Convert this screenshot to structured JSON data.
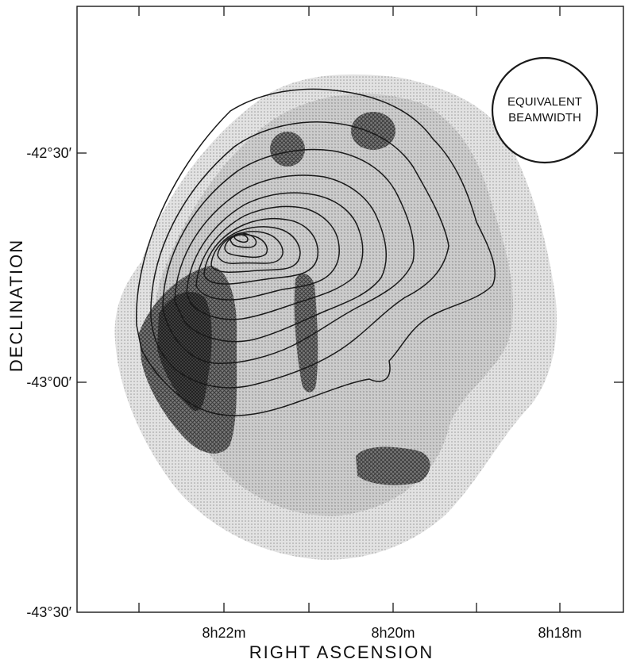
{
  "figure": {
    "xlabel": "RIGHT ASCENSION",
    "ylabel": "DECLINATION",
    "beam_label_line1": "EQUIVALENT",
    "beam_label_line2": "BEAMWIDTH"
  },
  "ticks": {
    "x": [
      {
        "id": "x-822",
        "label": "8h22m"
      },
      {
        "id": "x-820",
        "label": "8h20m"
      },
      {
        "id": "x-818",
        "label": "8h18m"
      }
    ],
    "y": [
      {
        "id": "y-4230",
        "label": "-42°30′"
      },
      {
        "id": "y-4300",
        "label": "-43°00′"
      },
      {
        "id": "y-4330",
        "label": "-43°30′"
      }
    ]
  },
  "colors": {
    "light_shade": "#d4d4d4",
    "medium_shade": "#b8b8b8",
    "dark_shade": "#6e6e6e",
    "darkest_shade": "#3e3e3e",
    "contour": "#1a1a1a"
  }
}
